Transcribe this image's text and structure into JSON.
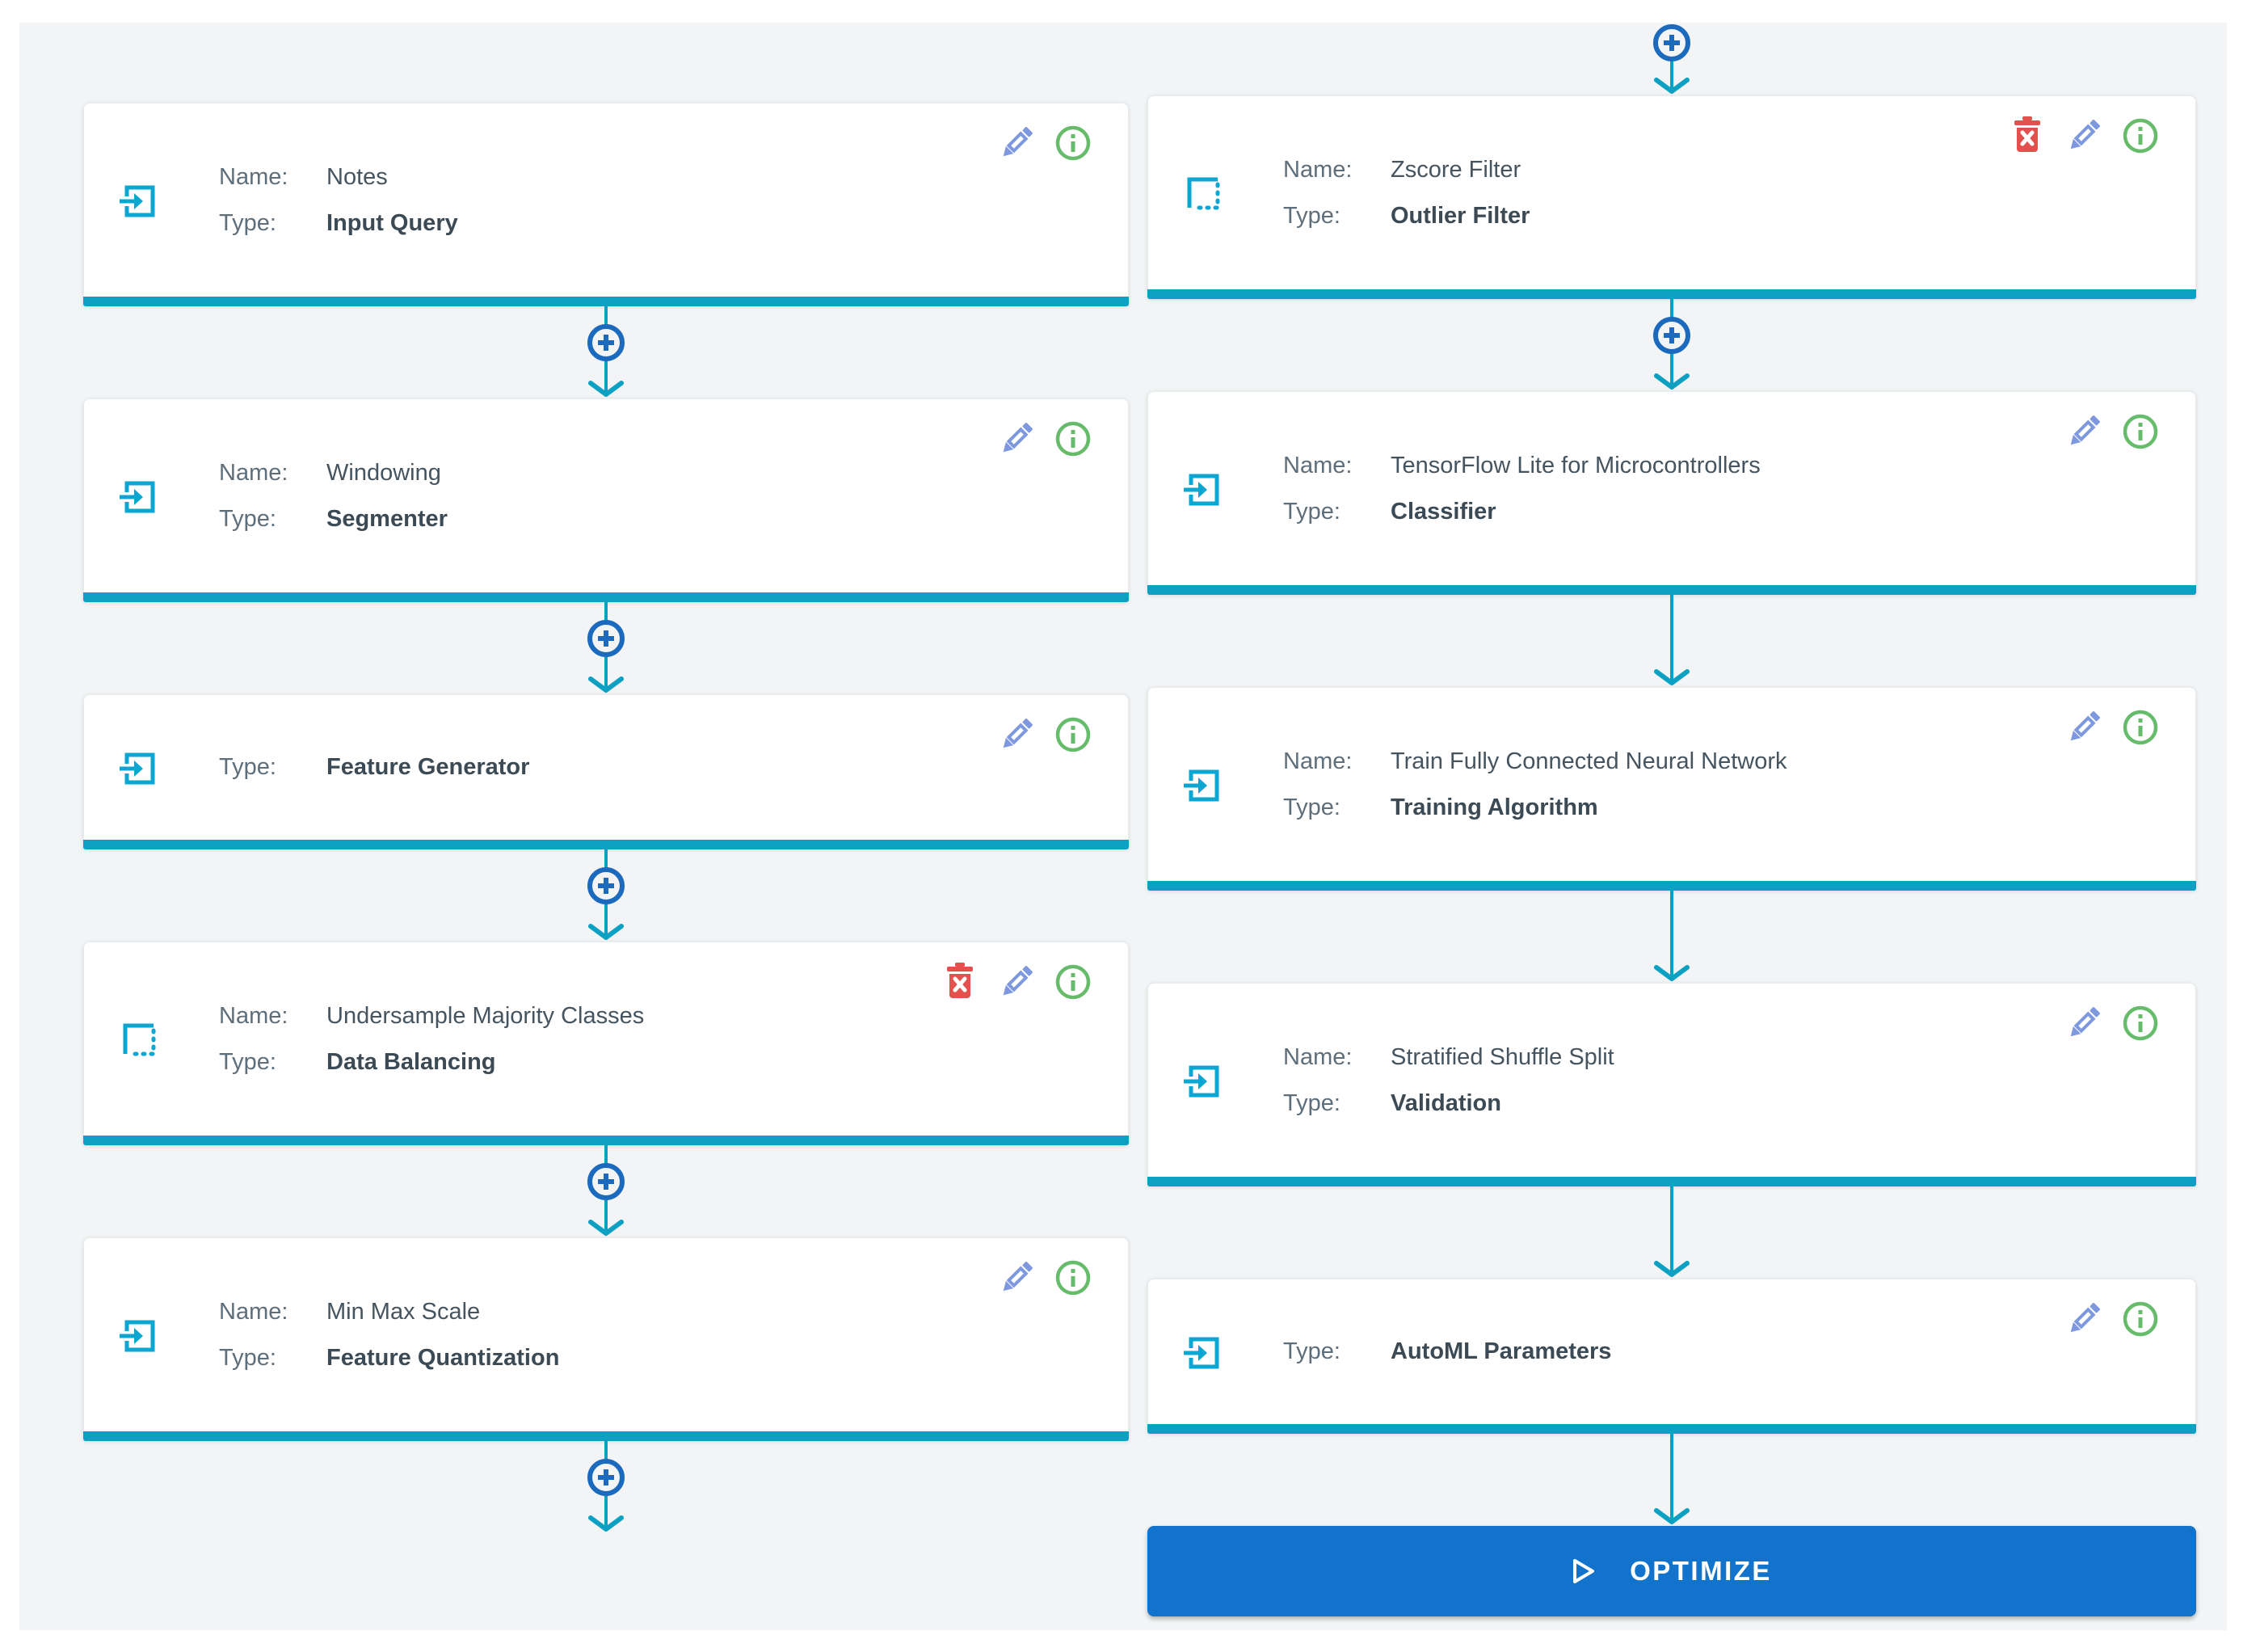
{
  "labels": {
    "name": "Name:",
    "type": "Type:"
  },
  "optimize": {
    "label": "OPTIMIZE",
    "icon": "play-outline-icon"
  },
  "colors": {
    "accent_teal": "#0CA0C2",
    "icon_cyan": "#0BA6D2",
    "plus_blue": "#1B6ABE",
    "edit_blue": "#7E98DF",
    "info_green": "#67BC6B",
    "delete_red": "#E4504E",
    "button_blue": "#1273CD",
    "panel_bg": "#F2F4F5"
  },
  "pipeline": {
    "columns": [
      {
        "id": "left",
        "connector_before": null,
        "steps": [
          {
            "icon": "input-icon",
            "name": "Notes",
            "type": "Input Query",
            "actions": [
              "edit-icon",
              "info-icon"
            ],
            "connector_after": "plus"
          },
          {
            "icon": "input-icon",
            "name": "Windowing",
            "type": "Segmenter",
            "actions": [
              "edit-icon",
              "info-icon"
            ],
            "connector_after": "plus"
          },
          {
            "icon": "input-icon",
            "name": null,
            "type": "Feature Generator",
            "actions": [
              "edit-icon",
              "info-icon"
            ],
            "connector_after": "plus"
          },
          {
            "icon": "dashed-box-icon",
            "name": "Undersample Majority Classes",
            "type": "Data Balancing",
            "actions": [
              "delete-icon",
              "edit-icon",
              "info-icon"
            ],
            "connector_after": "plus"
          },
          {
            "icon": "input-icon",
            "name": "Min Max Scale",
            "type": "Feature Quantization",
            "actions": [
              "edit-icon",
              "info-icon"
            ],
            "connector_after": "plus"
          }
        ]
      },
      {
        "id": "right",
        "connector_before": "plus",
        "steps": [
          {
            "icon": "dashed-box-icon",
            "name": "Zscore Filter",
            "type": "Outlier Filter",
            "actions": [
              "delete-icon",
              "edit-icon",
              "info-icon"
            ],
            "connector_after": "plus"
          },
          {
            "icon": "input-icon",
            "name": "TensorFlow Lite for Microcontrollers",
            "type": "Classifier",
            "actions": [
              "edit-icon",
              "info-icon"
            ],
            "connector_after": "arrow"
          },
          {
            "icon": "input-icon",
            "name": "Train Fully Connected Neural Network",
            "type": "Training Algorithm",
            "actions": [
              "edit-icon",
              "info-icon"
            ],
            "connector_after": "arrow"
          },
          {
            "icon": "input-icon",
            "name": "Stratified Shuffle Split",
            "type": "Validation",
            "actions": [
              "edit-icon",
              "info-icon"
            ],
            "connector_after": "arrow"
          },
          {
            "icon": "input-icon",
            "name": null,
            "type": "AutoML Parameters",
            "actions": [
              "edit-icon",
              "info-icon"
            ],
            "connector_after": "arrow"
          }
        ],
        "has_optimize_button": true
      }
    ]
  }
}
